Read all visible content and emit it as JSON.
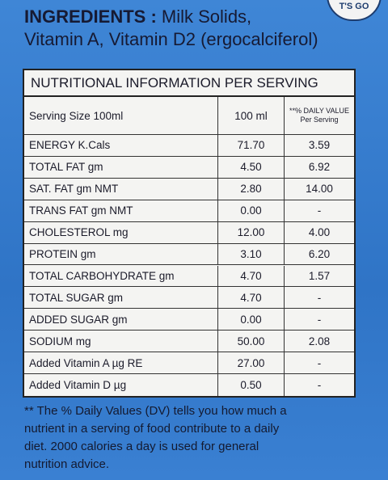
{
  "badge": "T'S GO",
  "ingredients": {
    "heading": "INGREDIENTS :",
    "lines": [
      "Milk Solids,",
      "Vitamin A, Vitamin D2 (ergocalciferol)"
    ]
  },
  "table": {
    "title": "NUTRITIONAL INFORMATION PER SERVING",
    "header": [
      "Serving Size 100ml",
      "100 ml",
      [
        "**% DAILY VALUE",
        "Per Serving"
      ]
    ],
    "rows": [
      [
        "ENERGY K.Cals",
        "71.70",
        "3.59"
      ],
      [
        "TOTAL FAT gm",
        "4.50",
        "6.92"
      ],
      [
        "SAT. FAT gm NMT",
        "2.80",
        "14.00"
      ],
      [
        "TRANS FAT gm NMT",
        "0.00",
        "-"
      ],
      [
        "CHOLESTEROL mg",
        "12.00",
        "4.00"
      ],
      [
        "PROTEIN gm",
        "3.10",
        "6.20"
      ],
      [
        "TOTAL CARBOHYDRATE gm",
        "4.70",
        "1.57"
      ],
      [
        "TOTAL SUGAR gm",
        "4.70",
        "-"
      ],
      [
        "ADDED SUGAR gm",
        "0.00",
        "-"
      ],
      [
        "SODIUM mg",
        "50.00",
        "2.08"
      ],
      [
        "Added Vitamin A µg RE",
        "27.00",
        "-"
      ],
      [
        "Added Vitamin D µg",
        "0.50",
        "-"
      ]
    ]
  },
  "footnote": [
    "** The % Daily Values (DV) tells you how much a",
    "nutrient in a serving of food contribute to a daily",
    "diet. 2000 calories a day is used for general",
    "nutrition advice."
  ]
}
